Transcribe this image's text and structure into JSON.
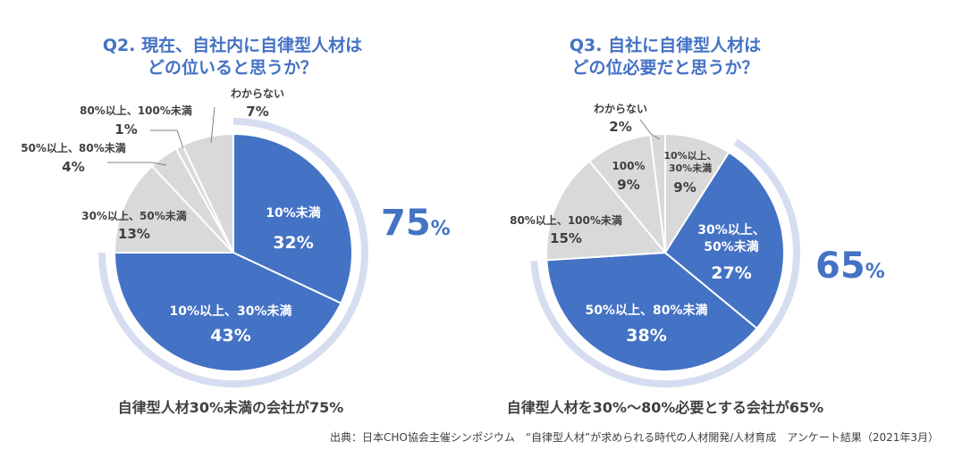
{
  "chart_data": [
    {
      "type": "pie",
      "title_line1": "Q2. 現在、自社内に自律型人材は",
      "title_line2": "どの位いると思うか？",
      "slices": [
        {
          "label": "10%未満",
          "pct_label": "32%",
          "value": 32,
          "color": "#4472c4"
        },
        {
          "label": "10%以上、30%未満",
          "pct_label": "43%",
          "value": 43,
          "color": "#4472c4"
        },
        {
          "label": "30%以上、50%未満",
          "pct_label": "13%",
          "value": 13,
          "color": "#d9d9d9"
        },
        {
          "label": "50%以上、80%未満",
          "pct_label": "4%",
          "value": 4,
          "color": "#d9d9d9"
        },
        {
          "label": "80%以上、100%未満",
          "pct_label": "1%",
          "value": 1,
          "color": "#d9d9d9"
        },
        {
          "label": "わからない",
          "pct_label": "7%",
          "value": 7,
          "color": "#d9d9d9"
        }
      ],
      "highlight_value": "75",
      "highlight_unit": "%",
      "summary": "自律型人材30%未満の会社が75%"
    },
    {
      "type": "pie",
      "title_line1": "Q3. 自社に自律型人材は",
      "title_line2": "どの位必要だと思うか？",
      "slices": [
        {
          "label": "10%以上、30%未満",
          "pct_label": "9%",
          "value": 9,
          "color": "#d9d9d9"
        },
        {
          "label": "30%以上、50%未満",
          "pct_label": "27%",
          "value": 27,
          "color": "#4472c4"
        },
        {
          "label": "50%以上、80%未満",
          "pct_label": "38%",
          "value": 38,
          "color": "#4472c4"
        },
        {
          "label": "80%以上、100%未満",
          "pct_label": "15%",
          "value": 15,
          "color": "#d9d9d9"
        },
        {
          "label": "100%",
          "pct_label": "9%",
          "value": 9,
          "color": "#d9d9d9"
        },
        {
          "label": "わからない",
          "pct_label": "2%",
          "value": 2,
          "color": "#d9d9d9"
        }
      ],
      "highlight_value": "65",
      "highlight_unit": "%",
      "summary": "自律型人材を30%～80%必要とする会社が65%"
    }
  ],
  "source": "出典：日本CHO協会主催シンポジウム　“自律型人材”が求められる時代の人材開発/人材育成　アンケート結果（2021年3月）",
  "colors": {
    "accent": "#4472c4",
    "neutral": "#d9d9d9",
    "arc": "#d6ddf0",
    "text": "#404040"
  }
}
